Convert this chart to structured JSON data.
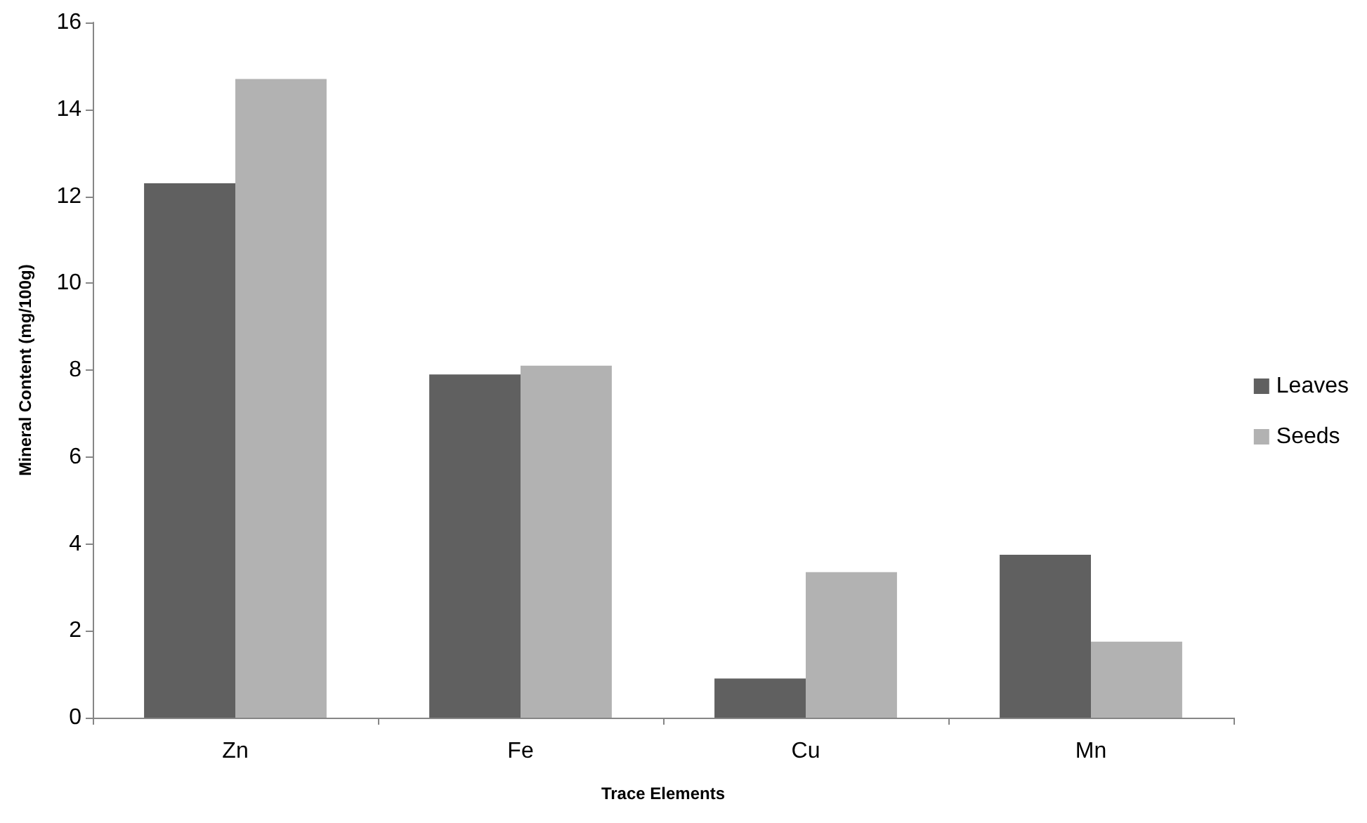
{
  "chart_data": {
    "type": "bar",
    "xlabel": "Trace Elements",
    "ylabel": "Mineral Content (mg/100g)",
    "categories": [
      "Zn",
      "Fe",
      "Cu",
      "Mn"
    ],
    "series": [
      {
        "name": "Leaves",
        "color": "#606060",
        "values": [
          12.3,
          7.9,
          0.9,
          3.75
        ]
      },
      {
        "name": "Seeds",
        "color": "#b2b2b2",
        "values": [
          14.7,
          8.1,
          3.35,
          1.75
        ]
      }
    ],
    "ylim": [
      0,
      16
    ],
    "yticks": [
      0,
      2,
      4,
      6,
      8,
      10,
      12,
      14,
      16
    ],
    "grid": false,
    "legend": "right"
  }
}
